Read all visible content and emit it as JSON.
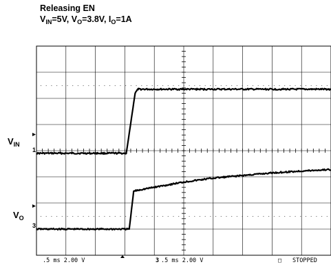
{
  "title": {
    "line1": "Releasing EN",
    "line2": {
      "vin_main": "V",
      "vin_sub": "IN",
      "vin_val": "=5V, ",
      "vo_main": "V",
      "vo_sub": "O",
      "vo_val": "=3.8V, ",
      "io_main": "I",
      "io_sub": "O",
      "io_val": "=1A"
    }
  },
  "channels": [
    {
      "main": "V",
      "sub": "IN",
      "marker": "1"
    },
    {
      "main": "V",
      "sub": "O",
      "marker": "3"
    }
  ],
  "footer": {
    "ch1_scale": ".5 ms 2.00 V",
    "ch3_marker": "3",
    "ch3_scale": ".5 ms 2.00 V",
    "status_box": "□",
    "status": "STOPPED"
  },
  "chart_data": {
    "type": "line",
    "title": "Releasing EN",
    "subtitle": "VIN=5V, VO=3.8V, IO=1A",
    "x_divisions": 10,
    "y_divisions": 8,
    "x_unit": "div (0.5 ms/div)",
    "y_unit": "div (2.00 V/div)",
    "grid": true,
    "series": [
      {
        "name": "VIN",
        "x": [
          0,
          3.05,
          3.35,
          3.45,
          10
        ],
        "y": [
          -0.1,
          -0.1,
          2.2,
          2.35,
          2.35
        ]
      },
      {
        "name": "VO",
        "x": [
          0,
          3.15,
          3.3,
          3.5,
          4,
          5,
          6,
          7,
          8,
          9,
          10
        ],
        "y": [
          -3.0,
          -3.0,
          -1.55,
          -1.5,
          -1.4,
          -1.2,
          -1.05,
          -0.95,
          -0.85,
          -0.78,
          -0.72
        ]
      }
    ]
  }
}
